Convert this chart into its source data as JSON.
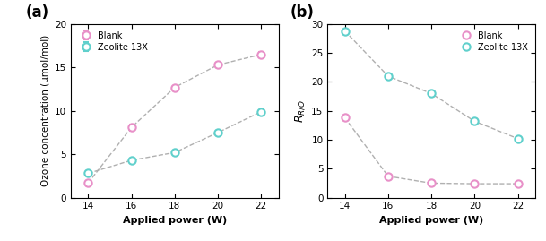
{
  "x": [
    14,
    16,
    18,
    20,
    22
  ],
  "blank_a": [
    1.7,
    8.1,
    12.7,
    15.3,
    16.5
  ],
  "zeolite_a": [
    2.8,
    4.3,
    5.2,
    7.5,
    9.9
  ],
  "blank_a_err": [
    0.15,
    0.35,
    0.0,
    0.0,
    0.3
  ],
  "zeolite_a_err": [
    0.0,
    0.0,
    0.0,
    0.0,
    0.0
  ],
  "blank_b": [
    13.8,
    3.7,
    2.5,
    2.4,
    2.4
  ],
  "zeolite_b": [
    28.8,
    21.0,
    18.0,
    13.2,
    10.2
  ],
  "blank_color": "#e890c8",
  "zeolite_color": "#60d0cc",
  "line_color": "#b0b0b0",
  "ylabel_a": "Ozone concentration (μmol/mol)",
  "ylabel_b": "$R_{R/O}$",
  "xlabel": "Applied power (W)",
  "label_a": "(a)",
  "label_b": "(b)",
  "legend_blank": "Blank",
  "legend_zeolite": "Zeolite 13X",
  "ylim_a": [
    0,
    20
  ],
  "ylim_b": [
    0,
    30
  ],
  "yticks_a": [
    0,
    5,
    10,
    15,
    20
  ],
  "yticks_b": [
    0,
    5,
    10,
    15,
    20,
    25,
    30
  ],
  "xticks": [
    14,
    16,
    18,
    20,
    22
  ]
}
